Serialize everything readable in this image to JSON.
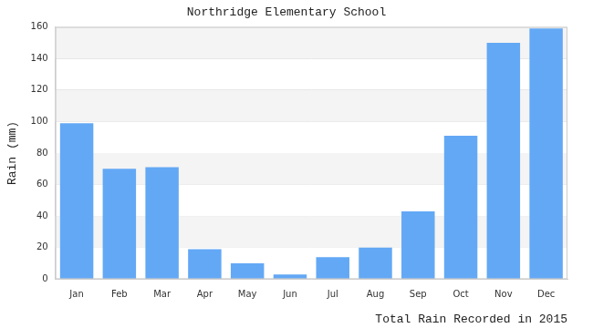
{
  "chart_data": {
    "type": "bar",
    "title": "Northridge Elementary School",
    "xlabel": "Total Rain Recorded in 2015",
    "ylabel": "Rain (mm)",
    "categories": [
      "Jan",
      "Feb",
      "Mar",
      "Apr",
      "May",
      "Jun",
      "Jul",
      "Aug",
      "Sep",
      "Oct",
      "Nov",
      "Dec"
    ],
    "values": [
      99,
      70,
      71,
      19,
      10,
      3,
      14,
      20,
      43,
      91,
      150,
      159
    ],
    "color": "#63a8f5",
    "ylim": [
      0,
      160
    ],
    "yticks": [
      0,
      20,
      40,
      60,
      80,
      100,
      120,
      140,
      160
    ],
    "grid": true
  }
}
